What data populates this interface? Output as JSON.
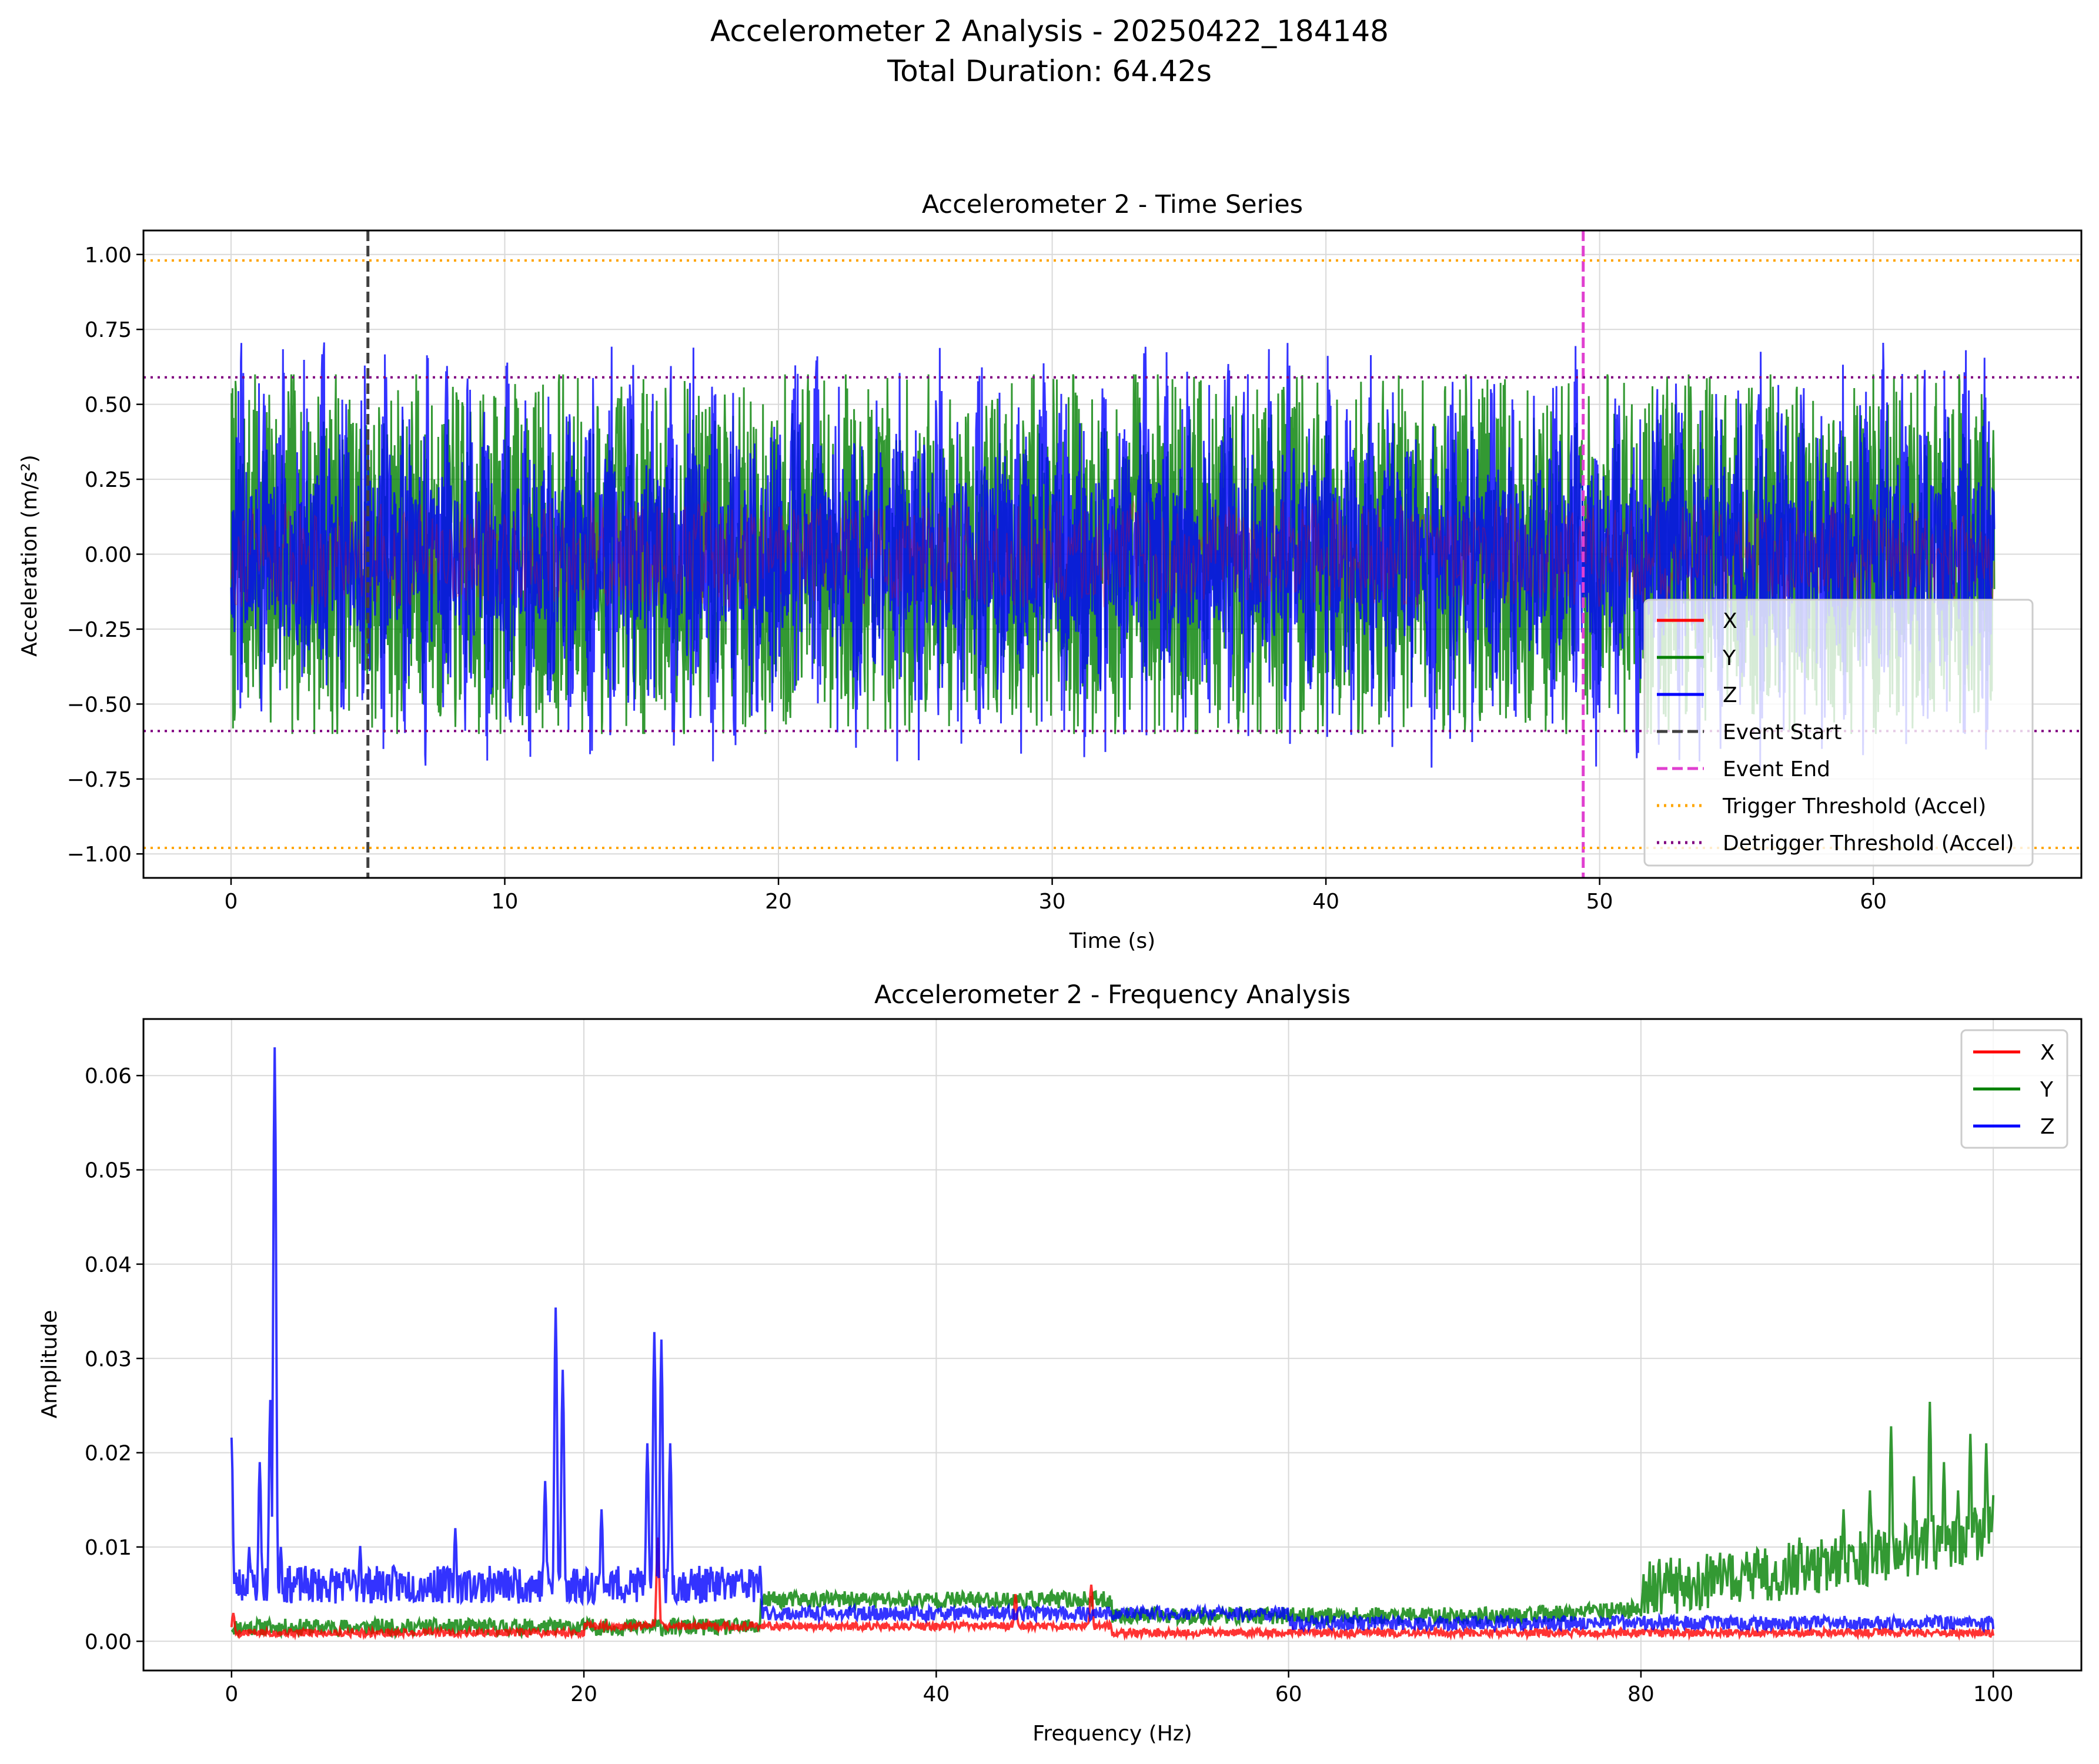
{
  "figure": {
    "suptitle_line1": "Accelerometer 2 Analysis - 20250422_184148",
    "suptitle_line2": "Total Duration: 64.42s"
  },
  "colors": {
    "x": "#ff0000",
    "y": "#008000",
    "z": "#0000ff",
    "event_start": "#404040",
    "event_end": "#e040d0",
    "trigger": "#ffa500",
    "detrigger": "#800080",
    "grid": "#d9d9d9"
  },
  "chart_data": [
    {
      "type": "line",
      "title": "Accelerometer 2 - Time Series",
      "xlabel": "Time (s)",
      "ylabel": "Acceleration (m/s²)",
      "xlim": [
        -3.2,
        67.6
      ],
      "ylim": [
        -1.08,
        1.08
      ],
      "xticks": [
        0,
        10,
        20,
        30,
        40,
        50,
        60
      ],
      "yticks": [
        -1.0,
        -0.75,
        -0.5,
        -0.25,
        0.0,
        0.25,
        0.5,
        0.75,
        1.0
      ],
      "ytick_labels": [
        "−1.00",
        "−0.75",
        "−0.50",
        "−0.25",
        "0.00",
        "0.25",
        "0.50",
        "0.75",
        "1.00"
      ],
      "grid": true,
      "legend_position": "lower-right",
      "duration": 64.42,
      "series": [
        {
          "name": "X",
          "approx_amplitude": 0.18,
          "note_range": [
            -0.2,
            0.2
          ]
        },
        {
          "name": "Y",
          "approx_amplitude": 0.6,
          "range": [
            -0.6,
            0.6
          ]
        },
        {
          "name": "Z",
          "approx_amplitude": 0.78,
          "range": [
            -0.72,
            0.78
          ],
          "burst_period": 0.75
        }
      ],
      "vlines": [
        {
          "name": "Event Start",
          "x": 5.0,
          "style": "dashed"
        },
        {
          "name": "Event End",
          "x": 49.4,
          "style": "dashed"
        }
      ],
      "hlines": [
        {
          "name": "Trigger Threshold (Accel)",
          "y": [
            0.98,
            -0.98
          ],
          "style": "dotted"
        },
        {
          "name": "Detrigger Threshold (Accel)",
          "y": [
            0.59,
            -0.59
          ],
          "style": "dotted"
        }
      ],
      "legend": [
        "X",
        "Y",
        "Z",
        "Event Start",
        "Event End",
        "Trigger Threshold (Accel)",
        "Detrigger Threshold (Accel)"
      ]
    },
    {
      "type": "line",
      "title": "Accelerometer 2 - Frequency Analysis",
      "xlabel": "Frequency (Hz)",
      "ylabel": "Amplitude",
      "xlim": [
        -5,
        105
      ],
      "ylim": [
        -0.0031,
        0.066
      ],
      "xticks": [
        0,
        20,
        40,
        60,
        80,
        100
      ],
      "yticks": [
        0.0,
        0.01,
        0.02,
        0.03,
        0.04,
        0.05,
        0.06
      ],
      "ytick_labels": [
        "0.00",
        "0.01",
        "0.02",
        "0.03",
        "0.04",
        "0.05",
        "0.06"
      ],
      "grid": true,
      "legend_position": "top-right",
      "series": [
        {
          "name": "X",
          "peaks": [
            [
              24.2,
              0.011
            ],
            [
              48.8,
              0.006
            ],
            [
              44.5,
              0.005
            ],
            [
              0.1,
              0.003
            ]
          ]
        },
        {
          "name": "Y",
          "peaks": [
            [
              83.0,
              0.006
            ],
            [
              86.0,
              0.0095
            ],
            [
              89.0,
              0.011
            ],
            [
              91.5,
              0.014
            ],
            [
              93.0,
              0.016
            ],
            [
              94.2,
              0.0228
            ],
            [
              95.5,
              0.0175
            ],
            [
              96.4,
              0.0254
            ],
            [
              97.2,
              0.019
            ],
            [
              98.0,
              0.016
            ],
            [
              98.7,
              0.022
            ],
            [
              99.6,
              0.021
            ],
            [
              100.0,
              0.0155
            ]
          ]
        },
        {
          "name": "Z",
          "peaks": [
            [
              0.0,
              0.0216
            ],
            [
              1.0,
              0.01
            ],
            [
              1.6,
              0.019
            ],
            [
              2.2,
              0.0256
            ],
            [
              2.45,
              0.063
            ],
            [
              2.8,
              0.01
            ],
            [
              7.3,
              0.0101
            ],
            [
              12.7,
              0.012
            ],
            [
              17.8,
              0.017
            ],
            [
              18.4,
              0.0354
            ],
            [
              18.8,
              0.0288
            ],
            [
              21.0,
              0.014
            ],
            [
              23.6,
              0.021
            ],
            [
              24.0,
              0.0328
            ],
            [
              24.4,
              0.032
            ],
            [
              24.9,
              0.021
            ],
            [
              30.0,
              0.008
            ]
          ]
        }
      ],
      "legend": [
        "X",
        "Y",
        "Z"
      ]
    }
  ]
}
